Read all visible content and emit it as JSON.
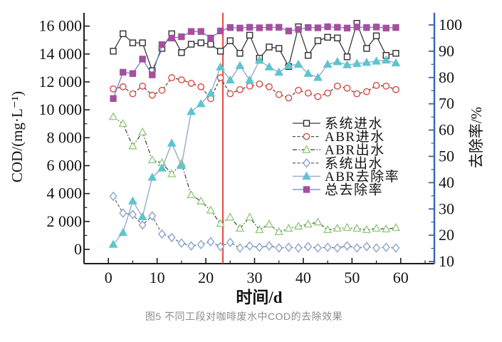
{
  "figure": {
    "caption": "图5 不同工段对咖啡废水中COD的去除效果"
  },
  "chart_data": {
    "type": "line",
    "x_label": "时间/d",
    "y_left_label": "COD/(mg·L⁻¹)",
    "y_right_label": "去除率/%",
    "xlim": [
      -5,
      66.9
    ],
    "y_left_lim": [
      -1020,
      16950
    ],
    "y_right_lim": [
      9.2,
      104.6
    ],
    "grid": false,
    "legend_position": "right-middle",
    "axis_colors": {
      "left": "#1c1c1c",
      "bottom": "#1c1c1c",
      "right": "#3c64b4"
    },
    "phase_line": {
      "x": 23.5,
      "color": "#e6352b"
    },
    "x_ticks": {
      "major": [
        0,
        10,
        20,
        30,
        40,
        50,
        60
      ],
      "minor": [
        5,
        15,
        25,
        35,
        45,
        55,
        65
      ]
    },
    "y_left_ticks": {
      "values": [
        0,
        2000,
        4000,
        6000,
        8000,
        10000,
        12000,
        14000,
        16000
      ],
      "labels": [
        "0",
        "2 000",
        "4 000",
        "6 000",
        "8 000",
        "10 000",
        "12 000",
        "14 000",
        "16 000"
      ],
      "minor": [
        1000,
        3000,
        5000,
        7000,
        9000,
        11000,
        13000,
        15000
      ]
    },
    "y_right_ticks": {
      "values": [
        10,
        20,
        30,
        40,
        50,
        60,
        70,
        80,
        90,
        100
      ],
      "labels": [
        "10",
        "20",
        "30",
        "40",
        "50",
        "60",
        "70",
        "80",
        "90",
        "100"
      ],
      "minor": [
        15,
        25,
        35,
        45,
        55,
        65,
        75,
        85,
        95
      ]
    },
    "x": [
      1,
      3,
      5,
      7,
      9,
      11,
      13,
      15,
      17,
      19,
      21,
      23,
      25,
      27,
      29,
      31,
      33,
      35,
      37,
      39,
      41,
      43,
      45,
      47,
      49,
      51,
      53,
      55,
      57,
      59
    ],
    "series": [
      {
        "id": "system-influent",
        "name": "系统进水",
        "axis": "left",
        "marker": "square-open",
        "color": "#2e2e2e",
        "line_color": "#3a3a3a",
        "line_dash": "",
        "values": [
          14200,
          15450,
          14800,
          14800,
          12800,
          14400,
          15450,
          14100,
          14700,
          14800,
          14700,
          14200,
          14950,
          14050,
          15350,
          13700,
          14500,
          14400,
          13100,
          15950,
          13900,
          14950,
          15200,
          15150,
          13800,
          16200,
          14400,
          15300,
          13900,
          14050
        ]
      },
      {
        "id": "abr-influent",
        "name": "ABR进水",
        "axis": "left",
        "marker": "circle-open",
        "color": "#d84a42",
        "line_color": "#4a4a4a",
        "line_dash": "4 2.5",
        "values": [
          11500,
          11650,
          11150,
          11700,
          11050,
          11400,
          12300,
          12150,
          11900,
          11650,
          10800,
          12300,
          11150,
          11450,
          11700,
          11850,
          11650,
          11100,
          10850,
          11400,
          11200,
          10950,
          11200,
          11700,
          11550,
          11150,
          11300,
          11750,
          11700,
          11450
        ]
      },
      {
        "id": "abr-effluent",
        "name": "ABR出水",
        "axis": "left",
        "marker": "triangle-open",
        "color": "#96cb80",
        "line_color": "#4a4a4a",
        "line_dash": "6 2.5 1.5 2.5",
        "values": [
          9500,
          9000,
          7400,
          8400,
          6400,
          6200,
          5400,
          6150,
          3900,
          3450,
          2800,
          1850,
          2300,
          1500,
          2300,
          1400,
          1800,
          1250,
          1500,
          1650,
          1800,
          1950,
          1400,
          1500,
          1550,
          1500,
          1400,
          1500,
          1450,
          1550
        ]
      },
      {
        "id": "system-effluent",
        "name": "系统出水",
        "axis": "left",
        "marker": "diamond-open",
        "color": "#8aa3d3",
        "line_color": "#6f6f6f",
        "line_dash": "4 2.5",
        "values": [
          3800,
          2600,
          2500,
          1750,
          2400,
          1100,
          850,
          450,
          250,
          350,
          550,
          200,
          500,
          100,
          250,
          150,
          250,
          100,
          150,
          100,
          200,
          100,
          150,
          100,
          250,
          100,
          200,
          100,
          150,
          100
        ]
      },
      {
        "id": "abr-removal-rate",
        "name": "ABR去除率",
        "axis": "right",
        "marker": "triangle-filled",
        "color": "#5ec5cf",
        "line_color": "#8fa6cd",
        "line_dash": "",
        "values": [
          16.5,
          21,
          33,
          27,
          42,
          45.5,
          55,
          46.5,
          67,
          70,
          74,
          84,
          79,
          84.5,
          79,
          86.5,
          84,
          82,
          84.5,
          85,
          81.5,
          80,
          85,
          86,
          84.8,
          85.3,
          85.7,
          86.2,
          86.6,
          85.5
        ]
      },
      {
        "id": "total-removal-rate",
        "name": "总去除率",
        "axis": "right",
        "marker": "square-filled",
        "color": "#a4509f",
        "line_color": "#6c86c3",
        "line_dash": "",
        "values": [
          72,
          82,
          81.5,
          87,
          81,
          92.5,
          95,
          95.5,
          97.5,
          97.5,
          95,
          97.7,
          99,
          98.8,
          99.1,
          98.9,
          99.1,
          99.1,
          97.7,
          98.3,
          99,
          98.9,
          99.3,
          99.1,
          98.8,
          99.2,
          99,
          99.2,
          98.8,
          99
        ]
      }
    ]
  }
}
